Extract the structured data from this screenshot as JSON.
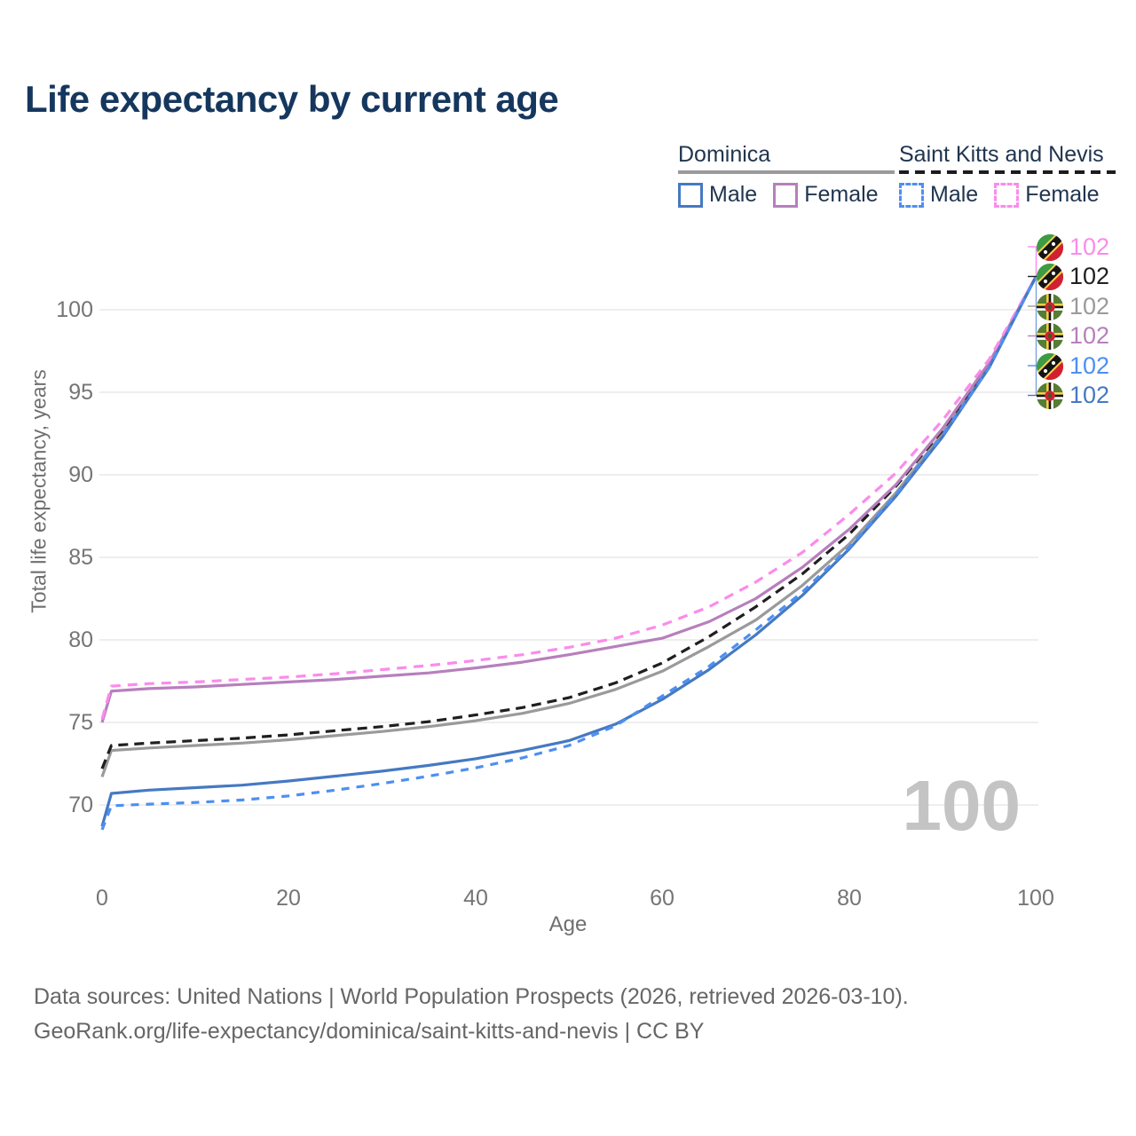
{
  "title": "Life expectancy by current age",
  "legend": {
    "groups": [
      {
        "label": "Dominica",
        "underline_style": "solid",
        "underline_color": "#9a9a9a",
        "items": [
          {
            "label": "Male",
            "color": "#4579c2",
            "dashed": false
          },
          {
            "label": "Female",
            "color": "#b77fbc",
            "dashed": false
          }
        ]
      },
      {
        "label": "Saint Kitts and Nevis",
        "underline_style": "dashed",
        "underline_color": "#1c1c1c",
        "items": [
          {
            "label": "Male",
            "color": "#4d8ff2",
            "dashed": true
          },
          {
            "label": "Female",
            "color": "#fb8bec",
            "dashed": true
          }
        ]
      }
    ]
  },
  "watermark": "100",
  "chart_data": {
    "type": "line",
    "title": "Life expectancy by current age",
    "xlabel": "Age",
    "ylabel": "Total life expectancy, years",
    "xlim": [
      0,
      100
    ],
    "ylim": [
      68,
      103
    ],
    "xticks": [
      0,
      20,
      40,
      60,
      80,
      100
    ],
    "yticks": [
      70,
      75,
      80,
      85,
      90,
      95,
      100
    ],
    "grid": true,
    "legend_position": "top-right",
    "x": [
      0,
      1,
      5,
      10,
      15,
      20,
      25,
      30,
      35,
      40,
      45,
      50,
      55,
      60,
      65,
      70,
      75,
      80,
      85,
      90,
      95,
      100
    ],
    "series": [
      {
        "id": "dominica-total",
        "name": "Dominica",
        "country": "Dominica",
        "sex": "all",
        "color": "#9a9a9a",
        "dash": "",
        "flag": "dominica",
        "end_label": "102",
        "values": [
          71.7,
          73.3,
          73.45,
          73.6,
          73.75,
          73.95,
          74.2,
          74.45,
          74.75,
          75.1,
          75.55,
          76.15,
          77.0,
          78.1,
          79.6,
          81.2,
          83.3,
          85.8,
          88.9,
          92.5,
          96.6,
          102
        ]
      },
      {
        "id": "saint-kitts-and-nevis-total",
        "name": "Saint Kitts and Nevis",
        "country": "Saint Kitts and Nevis",
        "sex": "all",
        "color": "#1f1f1f",
        "dash": "11 7",
        "flag": "saint-kitts-and-nevis",
        "end_label": "102",
        "values": [
          72.2,
          73.6,
          73.75,
          73.9,
          74.05,
          74.25,
          74.5,
          74.75,
          75.05,
          75.45,
          75.9,
          76.5,
          77.4,
          78.6,
          80.2,
          82.0,
          84.0,
          86.4,
          89.3,
          92.7,
          96.7,
          102
        ]
      },
      {
        "id": "dominica-female",
        "name": "Dominica Female",
        "country": "Dominica",
        "sex": "female",
        "color": "#b77fbc",
        "dash": "",
        "flag": "dominica",
        "end_label": "102",
        "values": [
          75.0,
          76.9,
          77.05,
          77.15,
          77.3,
          77.45,
          77.6,
          77.8,
          78.0,
          78.3,
          78.65,
          79.1,
          79.6,
          80.1,
          81.1,
          82.5,
          84.4,
          86.7,
          89.4,
          92.8,
          96.8,
          102
        ]
      },
      {
        "id": "saint-kitts-and-nevis-female",
        "name": "Saint Kitts and Nevis Female",
        "country": "Saint Kitts and Nevis",
        "sex": "female",
        "color": "#fb8bec",
        "dash": "11 8",
        "flag": "saint-kitts-and-nevis",
        "end_label": "102",
        "values": [
          75.2,
          77.2,
          77.35,
          77.45,
          77.6,
          77.75,
          77.95,
          78.2,
          78.45,
          78.75,
          79.1,
          79.55,
          80.1,
          80.9,
          82.0,
          83.5,
          85.3,
          87.6,
          90.1,
          93.3,
          97.0,
          102
        ]
      },
      {
        "id": "dominica-male",
        "name": "Dominica Male",
        "country": "Dominica",
        "sex": "male",
        "color": "#4579c2",
        "dash": "",
        "flag": "dominica",
        "end_label": "102",
        "values": [
          68.7,
          70.7,
          70.9,
          71.05,
          71.2,
          71.45,
          71.75,
          72.05,
          72.4,
          72.8,
          73.3,
          73.9,
          74.9,
          76.4,
          78.2,
          80.3,
          82.7,
          85.5,
          88.7,
          92.3,
          96.5,
          102
        ]
      },
      {
        "id": "saint-kitts-and-nevis-male",
        "name": "Saint Kitts and Nevis Male",
        "country": "Saint Kitts and Nevis",
        "sex": "male",
        "color": "#4d8ff2",
        "dash": "9 8",
        "flag": "saint-kitts-and-nevis",
        "end_label": "102",
        "values": [
          68.5,
          69.95,
          70.05,
          70.15,
          70.3,
          70.55,
          70.9,
          71.3,
          71.75,
          72.25,
          72.85,
          73.6,
          74.8,
          76.6,
          78.4,
          80.6,
          82.9,
          85.6,
          88.8,
          92.4,
          96.5,
          102
        ]
      }
    ]
  },
  "footer": {
    "line1": "Data sources: United Nations | World Population Prospects (2026, retrieved 2026-03-10).",
    "line2": "GeoRank.org/life-expectancy/dominica/saint-kitts-and-nevis | CC BY"
  }
}
